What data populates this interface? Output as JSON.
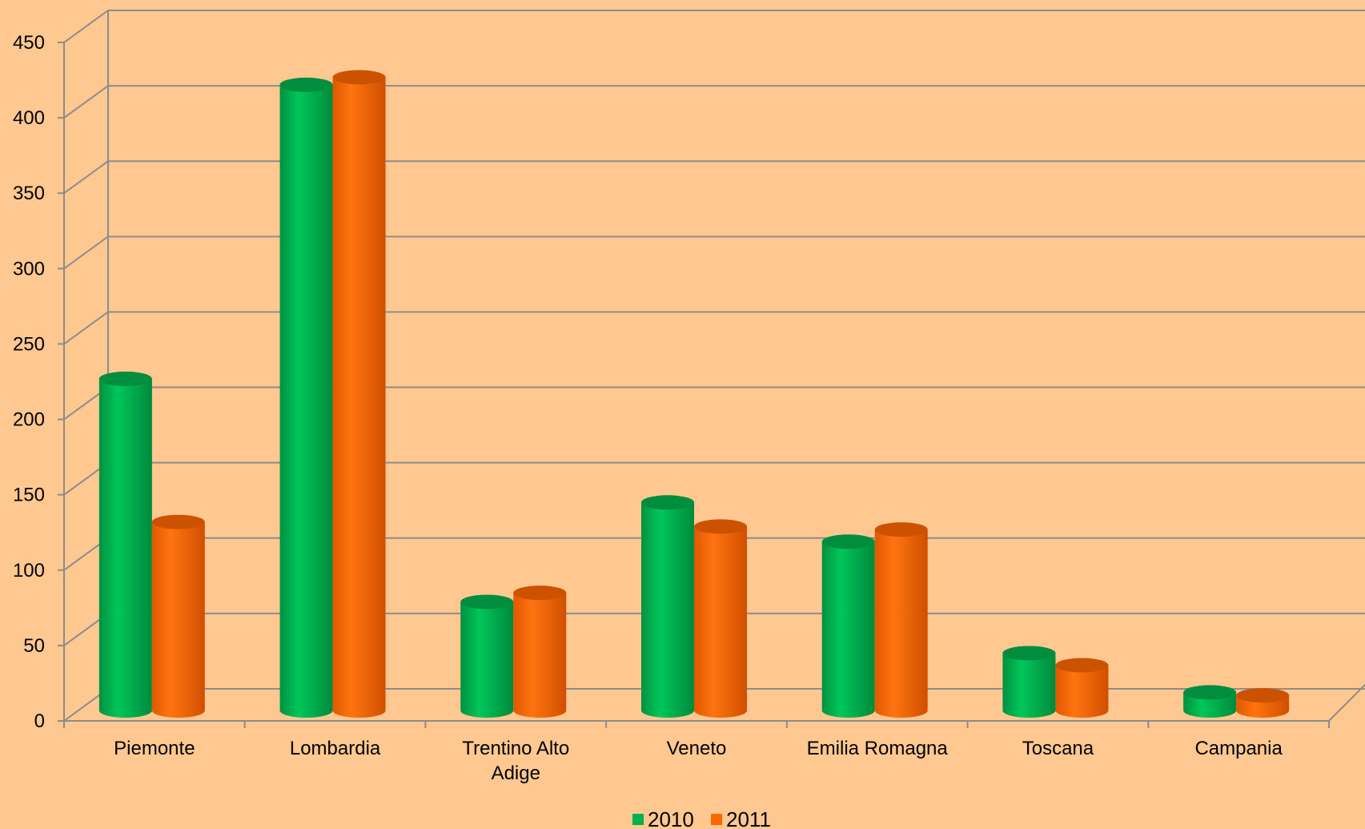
{
  "chart_data": {
    "type": "bar",
    "categories": [
      [
        "Piemonte"
      ],
      [
        "Lombardia"
      ],
      [
        "Trentino Alto",
        "Adige"
      ],
      [
        "Veneto"
      ],
      [
        "Emilia Romagna"
      ],
      [
        "Toscana"
      ],
      [
        "Campania"
      ]
    ],
    "series": [
      {
        "name": "2010",
        "color": "#00B050",
        "values": [
          220,
          415,
          72,
          138,
          112,
          38,
          12
        ]
      },
      {
        "name": "2011",
        "color": "#FF6600",
        "values": [
          125,
          420,
          78,
          122,
          120,
          30,
          10
        ]
      }
    ],
    "yticks": [
      "0",
      "50",
      "100",
      "150",
      "200",
      "250",
      "300",
      "350",
      "400",
      "450"
    ],
    "ylim": [
      0,
      450
    ],
    "grid": true,
    "legend_position": "bottom",
    "background_color": "#FFC891",
    "bar_shape": "3d-cylinder"
  }
}
